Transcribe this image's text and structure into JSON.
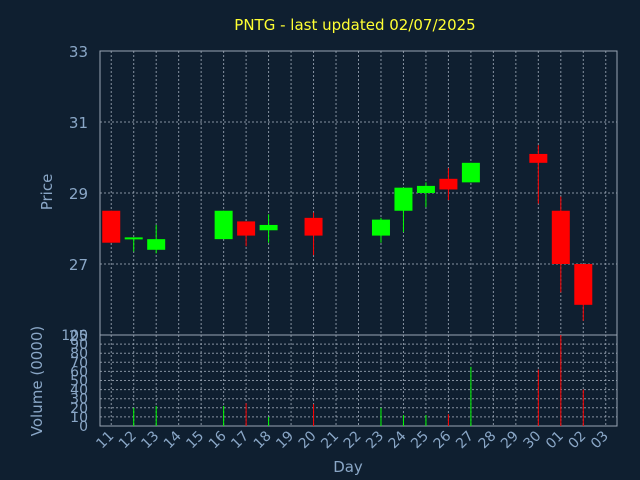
{
  "chart_data": {
    "type": "candlestick",
    "title": "PNTG - last updated 02/07/2025",
    "xlabel": "Day",
    "ylabel": "Price",
    "volume_label": "Volume (0000)",
    "colors": {
      "up": "#00ff00",
      "down": "#ff0000",
      "background": "#0f1f30",
      "grid": "#9aa6b4",
      "title": "#ffff33",
      "axis_text": "#8aa7c7"
    },
    "price_ylim": [
      25,
      33
    ],
    "price_ticks": [
      25,
      27,
      29,
      31,
      33
    ],
    "volume_ylim": [
      0,
      100
    ],
    "volume_ticks": [
      0,
      10,
      20,
      30,
      40,
      50,
      60,
      70,
      80,
      90,
      100
    ],
    "x_ticks": [
      "11",
      "12",
      "13",
      "14",
      "15",
      "16",
      "17",
      "18",
      "19",
      "20",
      "21",
      "22",
      "23",
      "24",
      "25",
      "26",
      "27",
      "28",
      "29",
      "30",
      "01",
      "02",
      "03"
    ],
    "candles": [
      {
        "day": "11",
        "open": 28.5,
        "high": 28.5,
        "low": 27.6,
        "close": 27.6,
        "volume": 0
      },
      {
        "day": "12",
        "open": 27.7,
        "high": 27.75,
        "low": 27.35,
        "close": 27.75,
        "volume": 20
      },
      {
        "day": "13",
        "open": 27.4,
        "high": 28.1,
        "low": 27.3,
        "close": 27.7,
        "volume": 22
      },
      {
        "day": "16",
        "open": 27.7,
        "high": 28.5,
        "low": 27.7,
        "close": 28.5,
        "volume": 22
      },
      {
        "day": "17",
        "open": 28.2,
        "high": 28.2,
        "low": 27.5,
        "close": 27.8,
        "volume": 25
      },
      {
        "day": "18",
        "open": 27.95,
        "high": 28.4,
        "low": 27.6,
        "close": 28.1,
        "volume": 10
      },
      {
        "day": "20",
        "open": 28.3,
        "high": 28.45,
        "low": 27.25,
        "close": 27.8,
        "volume": 24
      },
      {
        "day": "23",
        "open": 27.8,
        "high": 28.3,
        "low": 27.6,
        "close": 28.25,
        "volume": 20
      },
      {
        "day": "24",
        "open": 28.5,
        "high": 29.15,
        "low": 27.9,
        "close": 29.15,
        "volume": 12
      },
      {
        "day": "25",
        "open": 29.0,
        "high": 29.3,
        "low": 28.6,
        "close": 29.2,
        "volume": 12
      },
      {
        "day": "26",
        "open": 29.4,
        "high": 29.7,
        "low": 28.8,
        "close": 29.1,
        "volume": 13
      },
      {
        "day": "27",
        "open": 29.3,
        "high": 29.85,
        "low": 29.3,
        "close": 29.85,
        "volume": 65
      },
      {
        "day": "30",
        "open": 30.1,
        "high": 30.35,
        "low": 28.7,
        "close": 29.85,
        "volume": 62
      },
      {
        "day": "01",
        "open": 28.5,
        "high": 28.9,
        "low": 26.2,
        "close": 27.0,
        "volume": 100
      },
      {
        "day": "02",
        "open": 27.0,
        "high": 27.0,
        "low": 25.4,
        "close": 25.85,
        "volume": 40
      }
    ]
  }
}
